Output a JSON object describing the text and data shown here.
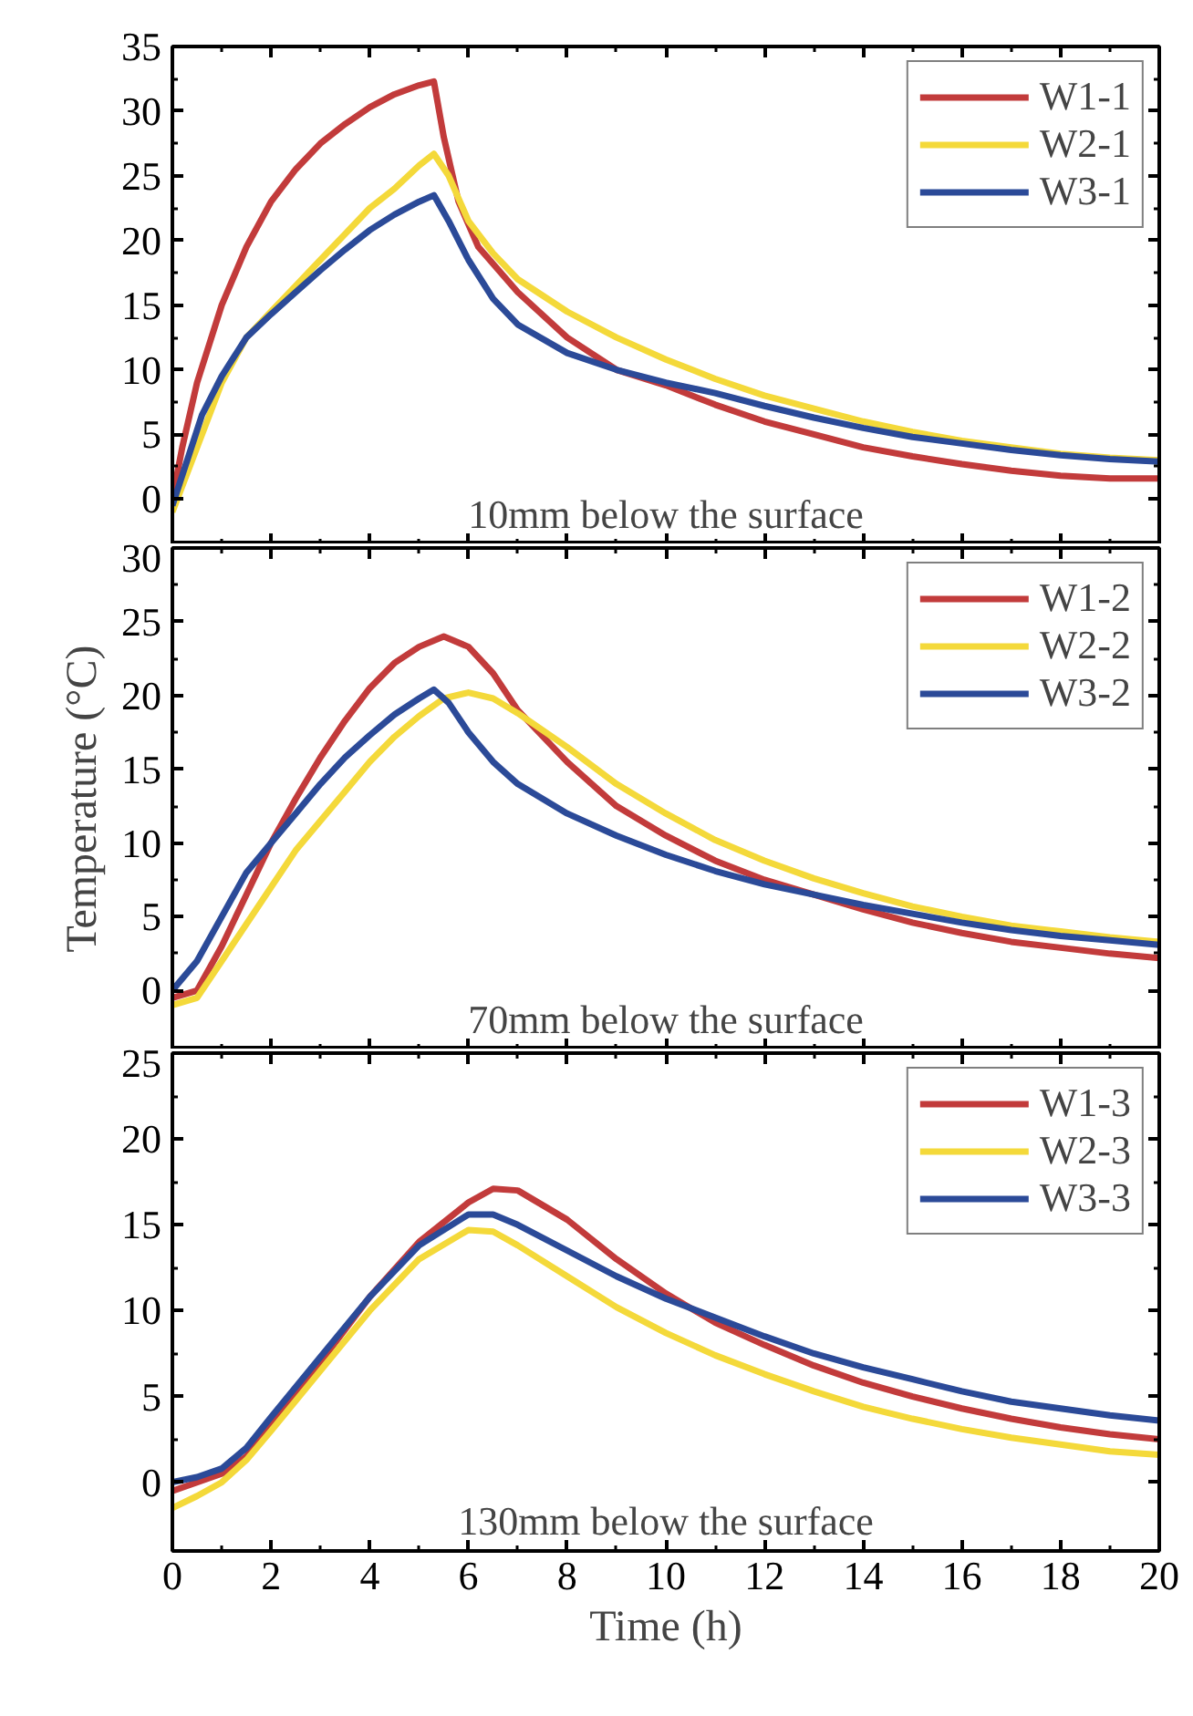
{
  "chart_data": [
    {
      "type": "line",
      "xlim": [
        0,
        20
      ],
      "xticks": [
        0,
        2,
        4,
        6,
        8,
        10,
        12,
        14,
        16,
        18,
        20
      ],
      "ylim": [
        -3.5,
        35
      ],
      "yticks": [
        0,
        5,
        10,
        15,
        20,
        25,
        30,
        35
      ],
      "tick_labels": "y",
      "legend": "top right",
      "grid": false,
      "annotations": [
        "10mm below the surface"
      ],
      "series": [
        {
          "name": "W1-1",
          "color": "#c23b3b",
          "x": [
            0,
            0.2,
            0.5,
            1,
            1.5,
            2,
            2.5,
            3,
            3.5,
            4,
            4.5,
            5,
            5.3,
            5.5,
            5.8,
            6.2,
            7,
            8,
            9,
            10,
            11,
            12,
            13,
            14,
            15,
            16,
            17,
            18,
            19,
            20
          ],
          "values": [
            0,
            4,
            9,
            15,
            19.5,
            23,
            25.5,
            27.5,
            29,
            30.3,
            31.3,
            32,
            32.3,
            28,
            23,
            19.5,
            16,
            12.5,
            10,
            8.8,
            7.3,
            6,
            5,
            4,
            3.3,
            2.7,
            2.2,
            1.8,
            1.6,
            1.6
          ]
        },
        {
          "name": "W2-1",
          "color": "#f4d93a",
          "x": [
            0,
            0.3,
            0.6,
            1,
            1.5,
            2,
            2.5,
            3,
            3.5,
            4,
            4.5,
            5,
            5.3,
            5.6,
            6,
            6.5,
            7,
            8,
            9,
            10,
            11,
            12,
            13,
            14,
            15,
            16,
            17,
            18,
            19,
            20
          ],
          "values": [
            -1,
            2,
            5,
            9,
            12.5,
            14.5,
            16.5,
            18.5,
            20.5,
            22.5,
            24,
            25.8,
            26.7,
            25,
            21.5,
            19,
            17,
            14.5,
            12.5,
            10.8,
            9.3,
            8,
            7,
            6,
            5.2,
            4.5,
            4,
            3.5,
            3.2,
            3
          ]
        },
        {
          "name": "W3-1",
          "color": "#2b4a98",
          "x": [
            0,
            0.3,
            0.6,
            1,
            1.5,
            2,
            2.5,
            3,
            3.5,
            4,
            4.5,
            5,
            5.3,
            5.6,
            6,
            6.5,
            7,
            8,
            9,
            10,
            11,
            12,
            13,
            14,
            15,
            16,
            17,
            18,
            19,
            20
          ],
          "values": [
            -0.5,
            3,
            6.5,
            9.5,
            12.5,
            14.3,
            16,
            17.7,
            19.3,
            20.8,
            22,
            23,
            23.5,
            21.5,
            18.5,
            15.5,
            13.5,
            11.3,
            10,
            9,
            8.2,
            7.2,
            6.3,
            5.5,
            4.8,
            4.3,
            3.8,
            3.4,
            3.1,
            2.9
          ]
        }
      ]
    },
    {
      "type": "line",
      "xlim": [
        0,
        20
      ],
      "xticks": [
        0,
        2,
        4,
        6,
        8,
        10,
        12,
        14,
        16,
        18,
        20
      ],
      "ylim": [
        -4,
        30
      ],
      "yticks": [
        0,
        5,
        10,
        15,
        20,
        25,
        30
      ],
      "tick_labels": "y",
      "legend": "top right",
      "grid": false,
      "ylabel": "Temperature (°C)",
      "annotations": [
        "70mm below the surface"
      ],
      "series": [
        {
          "name": "W1-2",
          "color": "#c23b3b",
          "x": [
            0,
            0.5,
            1,
            1.5,
            2,
            2.5,
            3,
            3.5,
            4,
            4.5,
            5,
            5.5,
            6,
            6.5,
            7,
            8,
            9,
            10,
            11,
            12,
            13,
            14,
            15,
            16,
            17,
            18,
            19,
            20
          ],
          "values": [
            -0.5,
            0,
            3,
            6.5,
            10,
            13,
            15.8,
            18.3,
            20.5,
            22.2,
            23.3,
            24,
            23.3,
            21.5,
            19,
            15.5,
            12.5,
            10.5,
            8.8,
            7.5,
            6.5,
            5.5,
            4.6,
            3.9,
            3.3,
            2.9,
            2.5,
            2.2
          ]
        },
        {
          "name": "W2-2",
          "color": "#f4d93a",
          "x": [
            0,
            0.5,
            1,
            1.5,
            2,
            2.5,
            3,
            3.5,
            4,
            4.5,
            5,
            5.5,
            6,
            6.5,
            7,
            8,
            9,
            10,
            11,
            12,
            13,
            14,
            15,
            16,
            17,
            18,
            19,
            20
          ],
          "values": [
            -1,
            -0.5,
            2,
            4.5,
            7,
            9.5,
            11.5,
            13.5,
            15.5,
            17.2,
            18.6,
            19.8,
            20.2,
            19.8,
            18.8,
            16.5,
            14,
            12,
            10.2,
            8.8,
            7.6,
            6.6,
            5.7,
            5,
            4.4,
            4,
            3.6,
            3.3
          ]
        },
        {
          "name": "W3-2",
          "color": "#2b4a98",
          "x": [
            0,
            0.5,
            1,
            1.5,
            2,
            2.5,
            3,
            3.5,
            4,
            4.5,
            5,
            5.3,
            5.6,
            6,
            6.5,
            7,
            8,
            9,
            10,
            11,
            12,
            13,
            14,
            15,
            16,
            17,
            18,
            19,
            20
          ],
          "values": [
            0,
            2,
            5,
            8,
            10,
            12,
            14,
            15.8,
            17.3,
            18.7,
            19.8,
            20.4,
            19.5,
            17.5,
            15.5,
            14,
            12,
            10.5,
            9.2,
            8.1,
            7.2,
            6.5,
            5.8,
            5.2,
            4.6,
            4.1,
            3.7,
            3.4,
            3.1
          ]
        }
      ]
    },
    {
      "type": "line",
      "xlim": [
        0,
        20
      ],
      "xticks": [
        0,
        2,
        4,
        6,
        8,
        10,
        12,
        14,
        16,
        18,
        20
      ],
      "ylim": [
        -4,
        25
      ],
      "yticks": [
        0,
        5,
        10,
        15,
        20,
        25
      ],
      "legend": "top right",
      "grid": false,
      "xlabel": "Time (h)",
      "annotations": [
        "130mm below the surface"
      ],
      "series": [
        {
          "name": "W1-3",
          "color": "#c23b3b",
          "x": [
            0,
            0.5,
            1,
            1.5,
            2,
            3,
            4,
            5,
            6,
            6.5,
            7,
            8,
            9,
            10,
            11,
            12,
            13,
            14,
            15,
            16,
            17,
            18,
            19,
            20
          ],
          "values": [
            -0.5,
            0,
            0.5,
            1.5,
            3.5,
            7,
            10.8,
            14,
            16.3,
            17.1,
            17,
            15.3,
            13,
            11,
            9.3,
            8,
            6.8,
            5.8,
            5,
            4.3,
            3.7,
            3.2,
            2.8,
            2.5
          ]
        },
        {
          "name": "W2-3",
          "color": "#f4d93a",
          "x": [
            0,
            0.5,
            1,
            1.5,
            2,
            3,
            4,
            5,
            6,
            6.5,
            7,
            8,
            9,
            10,
            11,
            12,
            13,
            14,
            15,
            16,
            17,
            18,
            19,
            20
          ],
          "values": [
            -1.5,
            -0.8,
            0,
            1.3,
            3,
            6.5,
            10,
            13,
            14.7,
            14.6,
            13.8,
            12,
            10.2,
            8.7,
            7.4,
            6.3,
            5.3,
            4.4,
            3.7,
            3.1,
            2.6,
            2.2,
            1.8,
            1.6
          ]
        },
        {
          "name": "W3-3",
          "color": "#2b4a98",
          "x": [
            0,
            0.5,
            1,
            1.5,
            2,
            3,
            4,
            5,
            6,
            6.5,
            7,
            8,
            9,
            10,
            11,
            12,
            13,
            14,
            15,
            16,
            17,
            18,
            19,
            20
          ],
          "values": [
            0,
            0.3,
            0.8,
            2,
            3.8,
            7.3,
            10.8,
            13.8,
            15.6,
            15.6,
            15,
            13.5,
            12,
            10.7,
            9.6,
            8.5,
            7.5,
            6.7,
            6,
            5.3,
            4.7,
            4.3,
            3.9,
            3.6
          ]
        }
      ]
    }
  ]
}
